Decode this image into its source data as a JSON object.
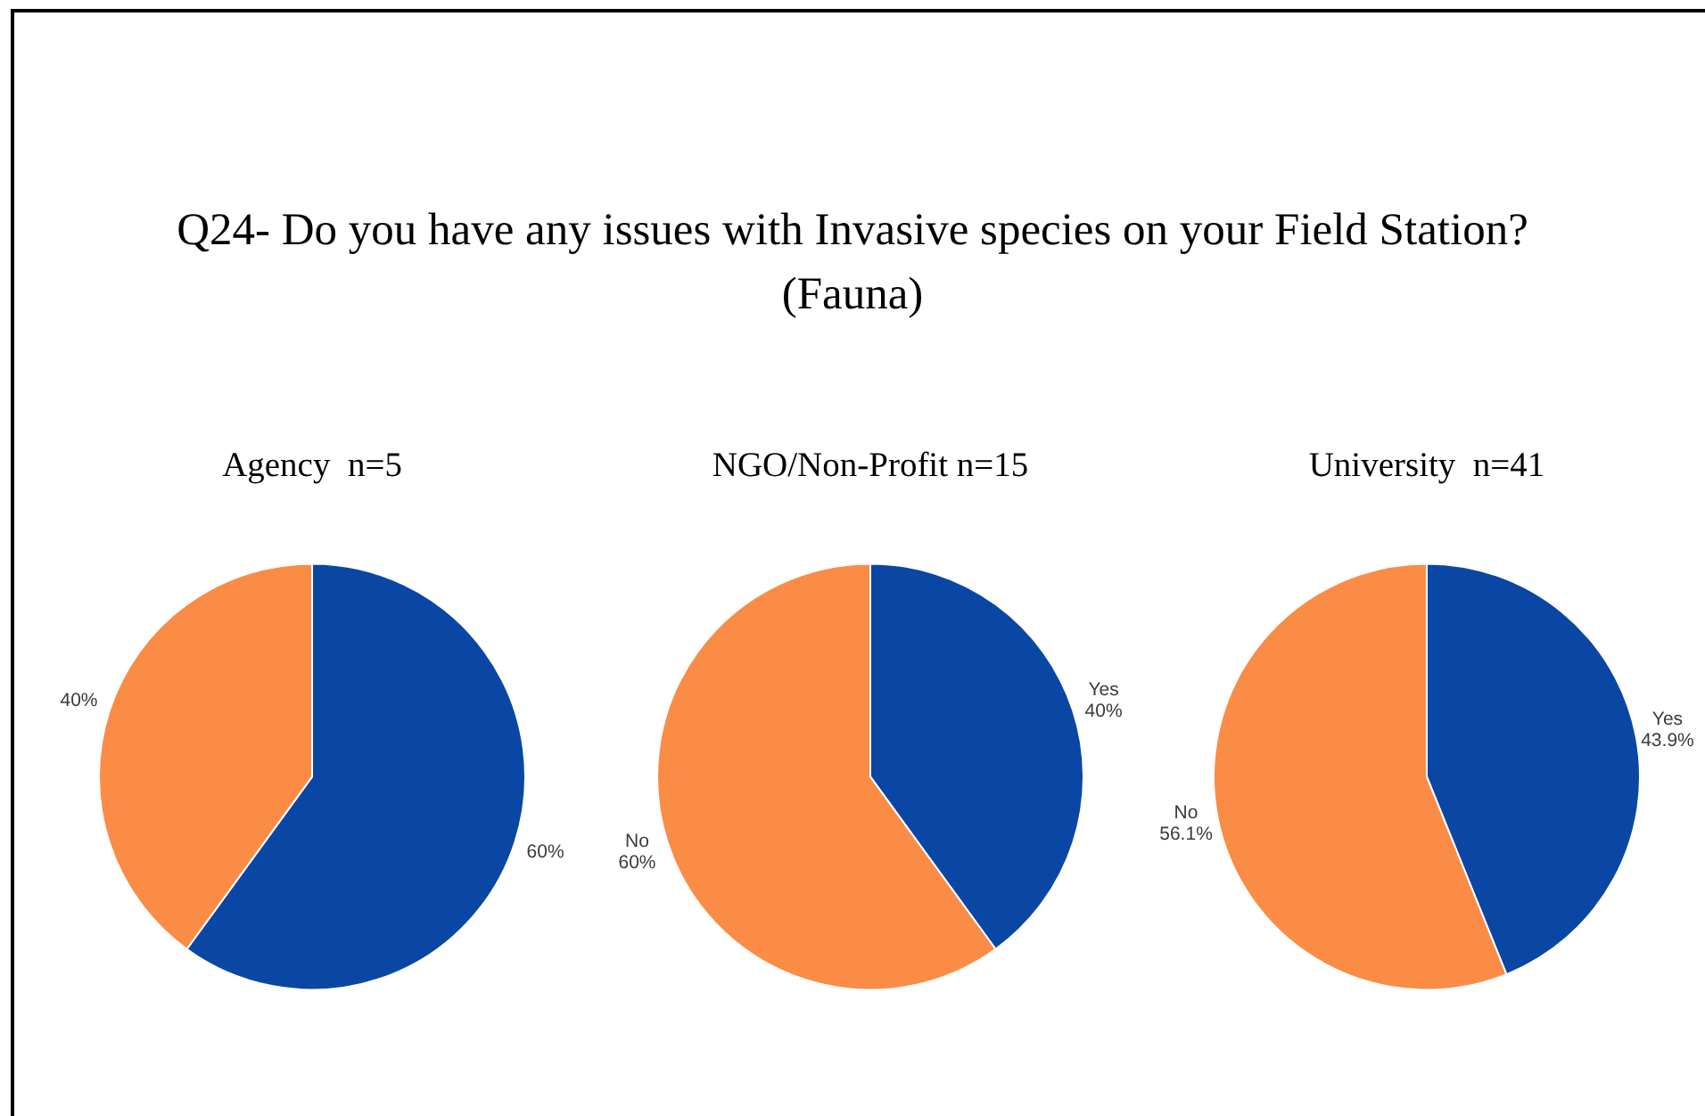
{
  "chart_data": [
    {
      "type": "other",
      "title": "Q24- Do you have any issues with Invasive species on your Field Station? (Fauna)"
    },
    {
      "type": "pie",
      "title": "Agency  n=5",
      "categories": [
        null,
        null
      ],
      "values": [
        60,
        40
      ],
      "colors": [
        "#0a47a4",
        "#fa8c46"
      ],
      "value_labels": [
        "60%",
        "40%"
      ]
    },
    {
      "type": "pie",
      "title": "NGO/Non-Profit n=15",
      "categories": [
        "Yes",
        "No"
      ],
      "values": [
        40,
        60
      ],
      "colors": [
        "#0a47a4",
        "#fa8c46"
      ],
      "value_labels": [
        "40%",
        "60%"
      ]
    },
    {
      "type": "pie",
      "title": "University  n=41",
      "categories": [
        "Yes",
        "No"
      ],
      "values": [
        43.9,
        56.1
      ],
      "colors": [
        "#0a47a4",
        "#fa8c46"
      ],
      "value_labels": [
        "43.9%",
        "56.1%"
      ]
    }
  ]
}
